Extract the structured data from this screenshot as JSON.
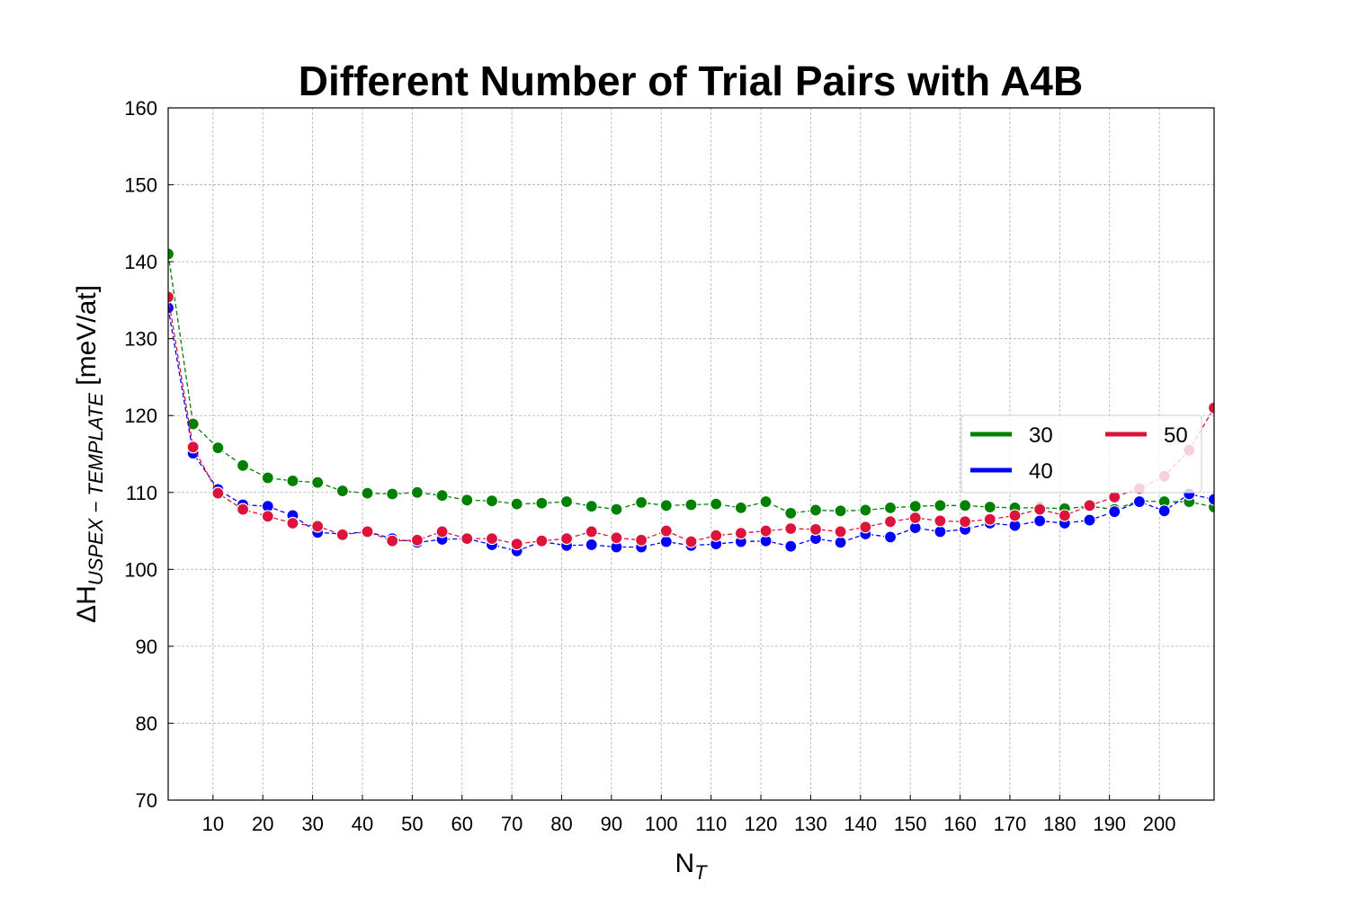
{
  "chart_data": {
    "type": "line",
    "title": "Different Number of Trial Pairs with A4B",
    "xlabel_main": "N",
    "xlabel_sub": "T",
    "ylabel_main": "ΔH",
    "ylabel_sub": "USPEX − TEMPLATE",
    "ylabel_unit": " [meV/at]",
    "xlim": [
      1,
      211
    ],
    "ylim": [
      70,
      160
    ],
    "xticks": [
      10,
      20,
      30,
      40,
      50,
      60,
      70,
      80,
      90,
      100,
      110,
      120,
      130,
      140,
      150,
      160,
      170,
      180,
      190,
      200
    ],
    "yticks": [
      70,
      80,
      90,
      100,
      110,
      120,
      130,
      140,
      150,
      160
    ],
    "grid": true,
    "legend_position": "center-right",
    "x": [
      1,
      6,
      11,
      16,
      21,
      26,
      31,
      36,
      41,
      46,
      51,
      56,
      61,
      66,
      71,
      76,
      81,
      86,
      91,
      96,
      101,
      106,
      111,
      116,
      121,
      126,
      131,
      136,
      141,
      146,
      151,
      156,
      161,
      166,
      171,
      176,
      181,
      186,
      191,
      196,
      201,
      206,
      211
    ],
    "series": [
      {
        "name": "30",
        "color": "#008000",
        "values": [
          141.0,
          118.9,
          115.8,
          113.5,
          111.9,
          111.5,
          111.3,
          110.2,
          109.9,
          109.8,
          110.0,
          109.6,
          109.0,
          108.9,
          108.5,
          108.6,
          108.8,
          108.2,
          107.8,
          108.7,
          108.3,
          108.4,
          108.5,
          108.0,
          108.8,
          107.3,
          107.7,
          107.6,
          107.7,
          108.0,
          108.2,
          108.3,
          108.3,
          108.1,
          108.0,
          108.0,
          107.9,
          108.2,
          107.8,
          108.9,
          108.8,
          108.8,
          108.1
        ]
      },
      {
        "name": "40",
        "color": "#0000ff",
        "values": [
          134.0,
          115.1,
          110.4,
          108.4,
          108.2,
          107.0,
          104.8,
          104.6,
          104.9,
          104.0,
          103.5,
          103.9,
          104.0,
          103.2,
          102.4,
          103.6,
          103.1,
          103.2,
          102.9,
          102.9,
          103.6,
          103.1,
          103.3,
          103.6,
          103.7,
          103.0,
          104.0,
          103.5,
          104.6,
          104.2,
          105.4,
          104.9,
          105.2,
          106.0,
          105.7,
          106.3,
          106.0,
          106.4,
          107.5,
          108.8,
          107.6,
          109.8,
          109.1
        ]
      },
      {
        "name": "50",
        "color": "#dc143c",
        "values": [
          135.4,
          115.9,
          109.9,
          107.8,
          106.9,
          106.0,
          105.6,
          104.5,
          104.9,
          103.7,
          103.8,
          104.9,
          104.0,
          104.0,
          103.3,
          103.7,
          104.0,
          104.9,
          104.1,
          103.8,
          105.0,
          103.6,
          104.4,
          104.7,
          105.0,
          105.3,
          105.2,
          104.9,
          105.5,
          106.2,
          106.7,
          106.3,
          106.2,
          106.5,
          107.0,
          107.8,
          107.0,
          108.3,
          109.4,
          110.5,
          112.1,
          115.5,
          121.0
        ]
      }
    ]
  }
}
